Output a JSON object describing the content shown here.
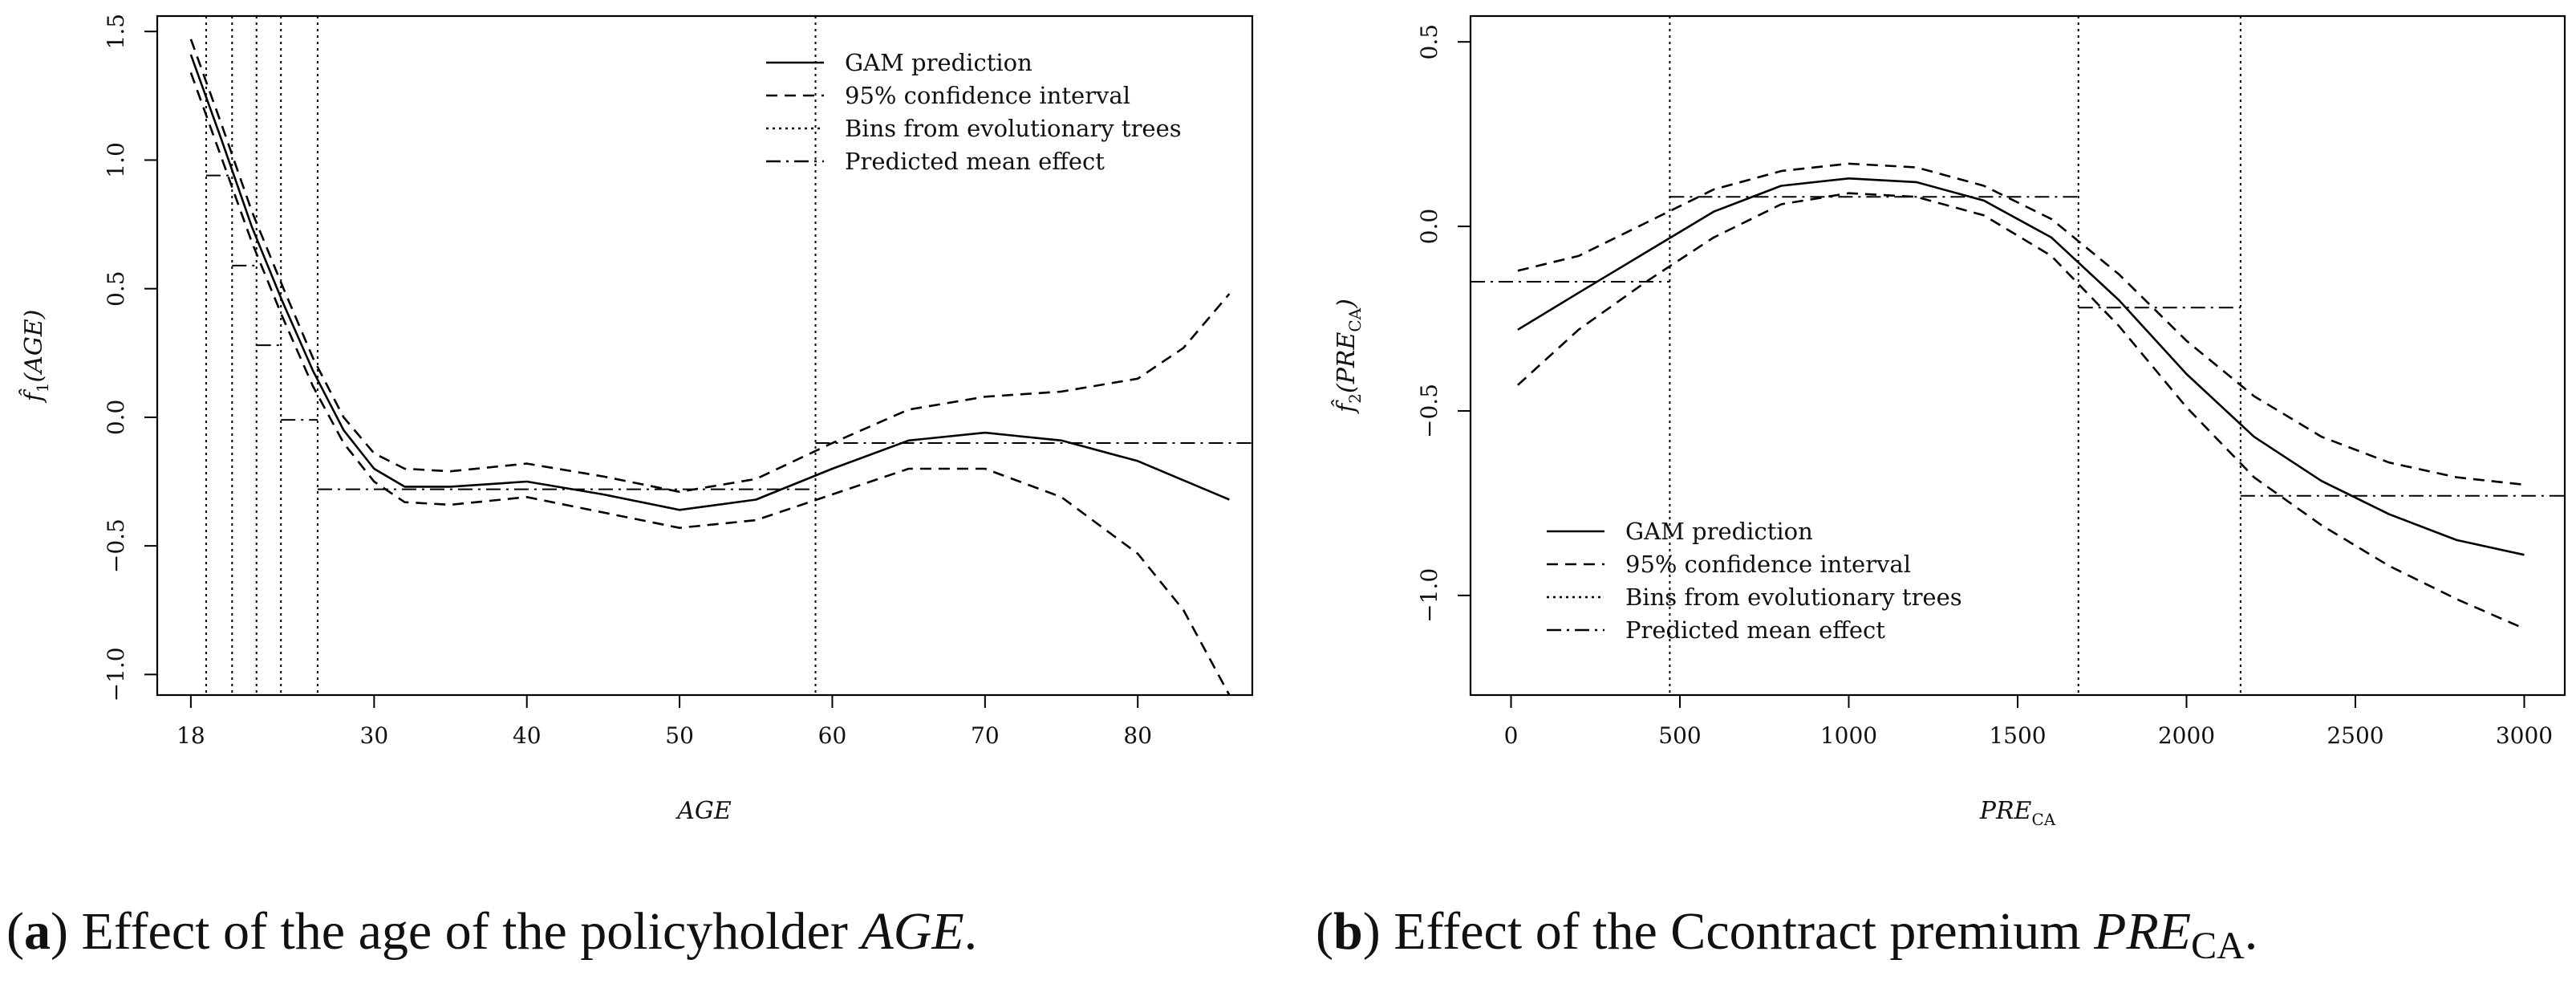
{
  "chart_data": [
    {
      "id": "a",
      "type": "line",
      "xlabel": "AGE",
      "ylabel": "f̂₁(AGE)",
      "xlim": [
        15.8,
        87.5
      ],
      "ylim": [
        -1.08,
        1.56
      ],
      "x_ticks": [
        18,
        30,
        40,
        50,
        60,
        70,
        80
      ],
      "y_ticks": [
        -1.0,
        -0.5,
        0.0,
        0.5,
        1.0,
        1.5
      ],
      "y_tick_labels": [
        "−1.0",
        "−0.5",
        "0.0",
        "0.5",
        "1.0",
        "1.5"
      ],
      "legend_position": "top-right",
      "legend": [
        "GAM prediction",
        "95% confidence interval",
        "Bins from evolutionary trees",
        "Predicted mean effect"
      ],
      "series": [
        {
          "name": "GAM prediction",
          "style": "solid",
          "x": [
            18,
            20,
            22,
            24,
            26,
            28,
            30,
            32,
            35,
            40,
            45,
            50,
            55,
            60,
            65,
            70,
            75,
            80,
            86
          ],
          "y": [
            1.41,
            1.08,
            0.74,
            0.45,
            0.18,
            -0.05,
            -0.2,
            -0.27,
            -0.27,
            -0.25,
            -0.3,
            -0.36,
            -0.32,
            -0.2,
            -0.09,
            -0.06,
            -0.09,
            -0.17,
            -0.32
          ]
        },
        {
          "name": "95% confidence interval (upper)",
          "style": "dashed",
          "x": [
            18,
            20,
            22,
            24,
            26,
            28,
            30,
            32,
            35,
            40,
            45,
            50,
            55,
            60,
            65,
            70,
            75,
            80,
            83,
            86
          ],
          "y": [
            1.47,
            1.14,
            0.8,
            0.51,
            0.23,
            0.0,
            -0.14,
            -0.2,
            -0.21,
            -0.18,
            -0.23,
            -0.29,
            -0.24,
            -0.1,
            0.03,
            0.08,
            0.1,
            0.15,
            0.27,
            0.48
          ]
        },
        {
          "name": "95% confidence interval (lower)",
          "style": "dashed",
          "x": [
            18,
            20,
            22,
            24,
            26,
            28,
            30,
            32,
            35,
            40,
            45,
            50,
            55,
            60,
            65,
            70,
            75,
            80,
            83,
            86
          ],
          "y": [
            1.34,
            1.01,
            0.68,
            0.39,
            0.12,
            -0.1,
            -0.25,
            -0.33,
            -0.34,
            -0.31,
            -0.37,
            -0.43,
            -0.4,
            -0.3,
            -0.2,
            -0.2,
            -0.31,
            -0.53,
            -0.75,
            -1.08
          ]
        }
      ],
      "bins": [
        19.0,
        20.7,
        22.3,
        23.9,
        26.3,
        58.9
      ],
      "mean_effects": [
        {
          "x0": 19.0,
          "x1": 20.7,
          "y": 0.94
        },
        {
          "x0": 20.7,
          "x1": 22.3,
          "y": 0.59
        },
        {
          "x0": 22.3,
          "x1": 23.9,
          "y": 0.28
        },
        {
          "x0": 23.9,
          "x1": 26.3,
          "y": -0.01
        },
        {
          "x0": 26.3,
          "x1": 58.9,
          "y": -0.28
        },
        {
          "x0": 58.9,
          "x1": 87.5,
          "y": -0.1
        }
      ],
      "caption_label": "a",
      "caption_text": "Effect of the age of the policyholder",
      "caption_var": "AGE",
      "caption_end": "."
    },
    {
      "id": "b",
      "type": "line",
      "xlabel": "PRE_CA",
      "ylabel": "f̂₂(PRE_CA)",
      "xlim": [
        -120,
        3120
      ],
      "ylim": [
        -1.27,
        0.57
      ],
      "x_ticks": [
        0,
        500,
        1000,
        1500,
        2000,
        2500,
        3000
      ],
      "y_ticks": [
        -1.0,
        -0.5,
        0.0,
        0.5
      ],
      "y_tick_labels": [
        "−1.0",
        "−0.5",
        "0.0",
        "0.5"
      ],
      "legend_position": "bottom-left",
      "legend": [
        "GAM prediction",
        "95% confidence interval",
        "Bins from evolutionary trees",
        "Predicted mean effect"
      ],
      "series": [
        {
          "name": "GAM prediction",
          "style": "solid",
          "x": [
            20,
            200,
            400,
            600,
            800,
            1000,
            1200,
            1400,
            1600,
            1800,
            2000,
            2200,
            2400,
            2600,
            2800,
            3000
          ],
          "y": [
            -0.28,
            -0.18,
            -0.07,
            0.04,
            0.11,
            0.13,
            0.12,
            0.07,
            -0.03,
            -0.2,
            -0.4,
            -0.57,
            -0.69,
            -0.78,
            -0.85,
            -0.89
          ]
        },
        {
          "name": "95% confidence interval (upper)",
          "style": "dashed",
          "x": [
            20,
            200,
            400,
            600,
            800,
            1000,
            1200,
            1400,
            1600,
            1800,
            2000,
            2200,
            2400,
            2600,
            2800,
            3000
          ],
          "y": [
            -0.12,
            -0.08,
            0.01,
            0.1,
            0.15,
            0.17,
            0.16,
            0.11,
            0.02,
            -0.13,
            -0.31,
            -0.46,
            -0.57,
            -0.64,
            -0.68,
            -0.7
          ]
        },
        {
          "name": "95% confidence interval (lower)",
          "style": "dashed",
          "x": [
            20,
            200,
            400,
            600,
            800,
            1000,
            1200,
            1400,
            1600,
            1800,
            2000,
            2200,
            2400,
            2600,
            2800,
            3000
          ],
          "y": [
            -0.43,
            -0.28,
            -0.15,
            -0.03,
            0.06,
            0.09,
            0.08,
            0.03,
            -0.08,
            -0.27,
            -0.49,
            -0.68,
            -0.81,
            -0.92,
            -1.01,
            -1.09
          ]
        }
      ],
      "bins": [
        470,
        1680,
        2160
      ],
      "mean_effects": [
        {
          "x0": -120,
          "x1": 470,
          "y": -0.15
        },
        {
          "x0": 470,
          "x1": 1680,
          "y": 0.08
        },
        {
          "x0": 1680,
          "x1": 2160,
          "y": -0.22
        },
        {
          "x0": 2160,
          "x1": 3120,
          "y": -0.73
        }
      ],
      "caption_label": "b",
      "caption_text": "Effect of the Ccontract premium",
      "caption_var": "PRE",
      "caption_sub": "CA",
      "caption_end": "."
    }
  ],
  "chart_a": {
    "ylabel_base": "f̂",
    "ylabel_sub": "1",
    "ylabel_arg": "(AGE)",
    "xlabel_text": "AGE"
  },
  "chart_b": {
    "ylabel_base": "f̂",
    "ylabel_sub": "2",
    "ylabel_arg_open": "(PRE",
    "ylabel_arg_sub": "CA",
    "ylabel_arg_close": ")",
    "xlabel_text": "PRE",
    "xlabel_sub": "CA"
  }
}
